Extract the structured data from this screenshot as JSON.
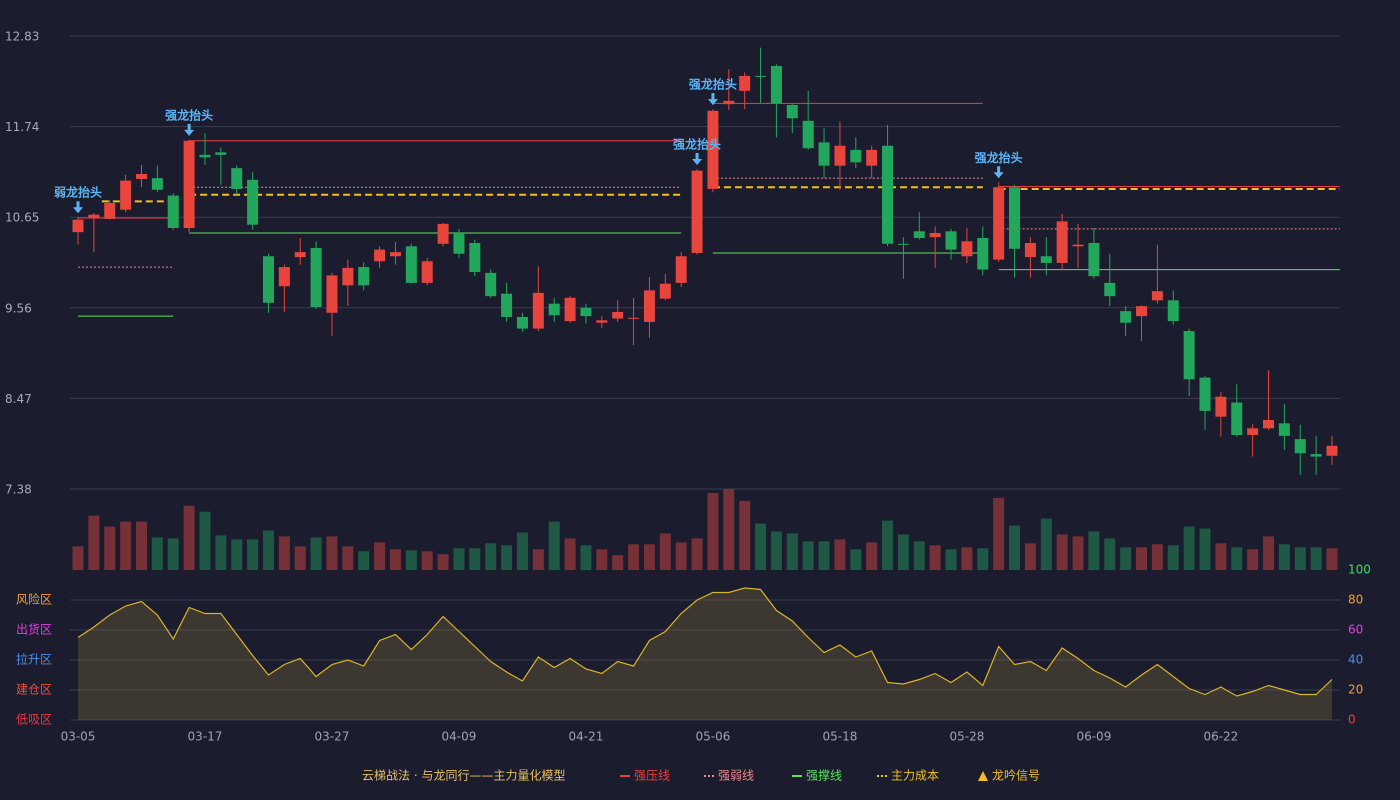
{
  "chart_data": [
    {
      "type": "candlestick",
      "categories": [
        "03-05",
        null,
        null,
        null,
        null,
        null,
        null,
        null,
        "03-17",
        null,
        null,
        null,
        null,
        null,
        null,
        null,
        "03-27",
        null,
        null,
        null,
        null,
        null,
        null,
        null,
        "04-09",
        null,
        null,
        null,
        null,
        null,
        null,
        null,
        "04-21",
        null,
        null,
        null,
        null,
        null,
        null,
        null,
        "05-06",
        null,
        null,
        null,
        null,
        null,
        null,
        null,
        "05-18",
        null,
        null,
        null,
        null,
        null,
        null,
        null,
        "05-28",
        null,
        null,
        null,
        null,
        null,
        null,
        null,
        "06-09",
        null,
        null,
        null,
        null,
        null,
        null,
        null,
        "06-22",
        null,
        null,
        null,
        null,
        null,
        null,
        null
      ],
      "ohlc": [
        [
          10.47,
          10.65,
          10.32,
          10.62
        ],
        [
          10.64,
          10.7,
          10.23,
          10.68
        ],
        [
          10.63,
          10.86,
          10.62,
          10.82
        ],
        [
          10.74,
          11.16,
          10.71,
          11.09
        ],
        [
          11.11,
          11.28,
          11.01,
          11.17
        ],
        [
          11.12,
          11.27,
          10.95,
          10.98
        ],
        [
          10.91,
          10.94,
          10.5,
          10.52
        ],
        [
          10.52,
          11.58,
          10.47,
          11.57
        ],
        [
          11.4,
          11.66,
          11.28,
          11.37
        ],
        [
          11.43,
          11.49,
          11.04,
          11.4
        ],
        [
          11.24,
          11.27,
          10.92,
          10.99
        ],
        [
          11.1,
          11.19,
          10.5,
          10.56
        ],
        [
          10.18,
          10.21,
          9.5,
          9.62
        ],
        [
          9.82,
          10.08,
          9.51,
          10.05
        ],
        [
          10.17,
          10.4,
          10.08,
          10.23
        ],
        [
          10.28,
          10.36,
          9.55,
          9.57
        ],
        [
          9.5,
          9.98,
          9.22,
          9.95
        ],
        [
          9.83,
          10.14,
          9.58,
          10.04
        ],
        [
          10.05,
          10.11,
          9.77,
          9.83
        ],
        [
          10.12,
          10.3,
          10.04,
          10.26
        ],
        [
          10.18,
          10.35,
          10.08,
          10.23
        ],
        [
          10.3,
          10.33,
          9.85,
          9.86
        ],
        [
          9.86,
          10.16,
          9.83,
          10.12
        ],
        [
          10.33,
          10.58,
          10.3,
          10.57
        ],
        [
          10.46,
          10.51,
          10.16,
          10.21
        ],
        [
          10.34,
          10.38,
          9.94,
          9.99
        ],
        [
          9.98,
          10.02,
          9.68,
          9.7
        ],
        [
          9.73,
          9.86,
          9.39,
          9.45
        ],
        [
          9.45,
          9.5,
          9.27,
          9.31
        ],
        [
          9.31,
          10.06,
          9.28,
          9.74
        ],
        [
          9.61,
          9.68,
          9.39,
          9.47
        ],
        [
          9.4,
          9.7,
          9.38,
          9.68
        ],
        [
          9.56,
          9.61,
          9.37,
          9.46
        ],
        [
          9.38,
          9.46,
          9.32,
          9.41
        ],
        [
          9.43,
          9.65,
          9.39,
          9.51
        ],
        [
          9.43,
          9.68,
          9.11,
          9.44
        ],
        [
          9.39,
          9.93,
          9.2,
          9.77
        ],
        [
          9.67,
          9.97,
          9.65,
          9.85
        ],
        [
          9.86,
          10.23,
          9.81,
          10.18
        ],
        [
          10.22,
          11.23,
          10.2,
          11.21
        ],
        [
          10.99,
          11.95,
          10.95,
          11.93
        ],
        [
          12.01,
          12.43,
          11.94,
          12.05
        ],
        [
          12.17,
          12.39,
          11.95,
          12.35
        ],
        [
          12.35,
          12.69,
          12.02,
          12.34
        ],
        [
          12.47,
          12.49,
          11.61,
          12.02
        ],
        [
          12.0,
          12.01,
          11.66,
          11.84
        ],
        [
          11.81,
          12.17,
          11.46,
          11.48
        ],
        [
          11.55,
          11.72,
          11.12,
          11.27
        ],
        [
          11.27,
          11.8,
          10.98,
          11.51
        ],
        [
          11.46,
          11.61,
          11.24,
          11.31
        ],
        [
          11.27,
          11.51,
          11.12,
          11.46
        ],
        [
          11.51,
          11.76,
          10.3,
          10.33
        ],
        [
          10.33,
          10.41,
          9.91,
          10.32
        ],
        [
          10.48,
          10.71,
          10.38,
          10.4
        ],
        [
          10.41,
          10.54,
          10.04,
          10.46
        ],
        [
          10.48,
          10.51,
          10.14,
          10.26
        ],
        [
          10.18,
          10.52,
          10.1,
          10.36
        ],
        [
          10.4,
          10.54,
          9.95,
          10.02
        ],
        [
          10.14,
          11.07,
          10.11,
          11.01
        ],
        [
          11.01,
          11.04,
          9.92,
          10.27
        ],
        [
          10.17,
          10.41,
          9.92,
          10.34
        ],
        [
          10.18,
          10.41,
          9.95,
          10.1
        ],
        [
          10.1,
          10.69,
          10.02,
          10.6
        ],
        [
          10.3,
          10.57,
          10.04,
          10.32
        ],
        [
          10.34,
          10.52,
          9.91,
          9.94
        ],
        [
          9.86,
          10.21,
          9.58,
          9.7
        ],
        [
          9.52,
          9.58,
          9.22,
          9.38
        ],
        [
          9.46,
          9.59,
          9.16,
          9.58
        ],
        [
          9.65,
          10.32,
          9.61,
          9.76
        ],
        [
          9.65,
          9.77,
          9.35,
          9.4
        ],
        [
          9.28,
          9.31,
          8.5,
          8.7
        ],
        [
          8.72,
          8.74,
          8.09,
          8.32
        ],
        [
          8.25,
          8.55,
          8.01,
          8.49
        ],
        [
          8.42,
          8.64,
          8.01,
          8.03
        ],
        [
          8.03,
          8.16,
          7.77,
          8.11
        ],
        [
          8.11,
          8.81,
          8.09,
          8.21
        ],
        [
          8.17,
          8.4,
          7.85,
          8.02
        ],
        [
          7.98,
          8.15,
          7.55,
          7.81
        ],
        [
          7.8,
          8.02,
          7.55,
          7.77
        ],
        [
          7.78,
          8.02,
          7.67,
          7.9
        ]
      ],
      "up_color": "#e8453c",
      "down_color": "#22a85c",
      "ylim": [
        7.38,
        12.83
      ],
      "yticks": [
        12.83,
        11.74,
        10.65,
        9.56,
        8.47,
        7.38
      ],
      "grid": true,
      "levels": [
        {
          "legend": 0,
          "from": 0,
          "to": 6,
          "value": 10.64
        },
        {
          "legend": 1,
          "from": 0,
          "to": 6,
          "value": 10.05
        },
        {
          "legend": 2,
          "from": 0,
          "to": 6,
          "value": 9.46
        },
        {
          "legend": 3,
          "from": 1.5,
          "to": 6,
          "value": 10.84
        },
        {
          "legend": 0,
          "from": 7,
          "to": 38,
          "value": 11.57
        },
        {
          "legend": 1,
          "from": 7,
          "to": 38,
          "value": 11.01
        },
        {
          "legend": 2,
          "from": 7,
          "to": 38,
          "value": 10.46
        },
        {
          "legend": 3,
          "from": 7,
          "to": 38,
          "value": 10.92
        },
        {
          "legend": 0,
          "from": 40,
          "to": 57,
          "value": 12.02
        },
        {
          "legend": 1,
          "from": 40,
          "to": 57,
          "value": 11.12
        },
        {
          "legend": 2,
          "from": 40,
          "to": 57,
          "value": 10.22
        },
        {
          "legend": 3,
          "from": 40,
          "to": 57,
          "value": 11.01
        },
        {
          "legend": 0,
          "from": 58,
          "to": 79.5,
          "value": 11.02
        },
        {
          "legend": 1,
          "from": 58,
          "to": 79.5,
          "value": 10.51
        },
        {
          "legend": 2,
          "from": 58,
          "to": 79.5,
          "value": 10.02
        },
        {
          "legend": 3,
          "from": 58,
          "to": 79.5,
          "value": 10.99
        }
      ],
      "signals": [
        {
          "index": 0,
          "text": "弱龙抬头"
        },
        {
          "index": 7,
          "text": "强龙抬头"
        },
        {
          "index": 39,
          "text": "强龙抬头"
        },
        {
          "index": 40,
          "text": "强龙抬头"
        },
        {
          "index": 58,
          "text": "强龙抬头"
        }
      ],
      "signal_color": "#5ab4f5"
    },
    {
      "type": "bar",
      "values": [
        24,
        55,
        44,
        49,
        49,
        33,
        32,
        65,
        59,
        35,
        31,
        31,
        40,
        34,
        24,
        33,
        34,
        24,
        19,
        28,
        21,
        20,
        19,
        16,
        22,
        22,
        27,
        25,
        38,
        21,
        49,
        32,
        25,
        21,
        15,
        26,
        26,
        37,
        28,
        32,
        78,
        82,
        70,
        47,
        39,
        37,
        29,
        29,
        31,
        21,
        28,
        50,
        36,
        29,
        25,
        21,
        23,
        22,
        73,
        45,
        27,
        52,
        36,
        34,
        39,
        32,
        23,
        23,
        26,
        25,
        44,
        42,
        27,
        23,
        21,
        34,
        26,
        23,
        23,
        22
      ],
      "up_color": "#763037",
      "down_color": "#1f5845"
    },
    {
      "type": "line",
      "values": [
        55,
        62,
        70,
        76,
        79,
        70,
        54,
        75,
        71,
        71,
        57,
        43,
        30,
        37,
        41,
        29,
        37,
        40,
        36,
        53,
        57,
        47,
        57,
        69,
        59,
        49,
        39,
        32,
        26,
        42,
        35,
        41,
        34,
        31,
        39,
        36,
        53,
        59,
        71,
        80,
        85,
        85,
        88,
        87,
        73,
        66,
        55,
        45,
        50,
        42,
        46,
        25,
        24,
        27,
        31,
        25,
        32,
        23,
        49,
        37,
        39,
        33,
        48,
        41,
        33,
        28,
        22,
        30,
        37,
        29,
        21,
        17,
        22,
        16,
        19,
        23,
        20,
        17,
        17,
        27
      ],
      "color": "#d8b428",
      "ylim": [
        0,
        100
      ],
      "yticks": [
        0,
        20,
        40,
        60,
        80,
        100
      ],
      "ytick_colors": [
        "#e8453c",
        "#f0a030",
        "#4a8ff0",
        "#e040e0",
        "#f0a030",
        "#3ee05a"
      ],
      "zones": [
        {
          "label": "风险区",
          "value": 80,
          "color": "#f0a030"
        },
        {
          "label": "出货区",
          "value": 60,
          "color": "#e040e0"
        },
        {
          "label": "拉升区",
          "value": 40,
          "color": "#4a8ff0"
        },
        {
          "label": "建仓区",
          "value": 20,
          "color": "#e85040"
        },
        {
          "label": "低吸区",
          "value": 0,
          "color": "#e83848"
        }
      ]
    }
  ],
  "legend": {
    "title": "云梯战法 · 与龙同行——主力量化模型",
    "title_color": "#e8c060",
    "items": [
      {
        "label": "强压线",
        "color": "#e84040",
        "style": "solid"
      },
      {
        "label": "强弱线",
        "color": "#f08890",
        "style": "dotted"
      },
      {
        "label": "强撑线",
        "color": "#5ee05e",
        "style": "solid"
      },
      {
        "label": "主力成本",
        "color": "#f0c020",
        "style": "dashed"
      },
      {
        "label": "龙吟信号",
        "color": "#f0c020",
        "style": "triangle"
      }
    ]
  }
}
